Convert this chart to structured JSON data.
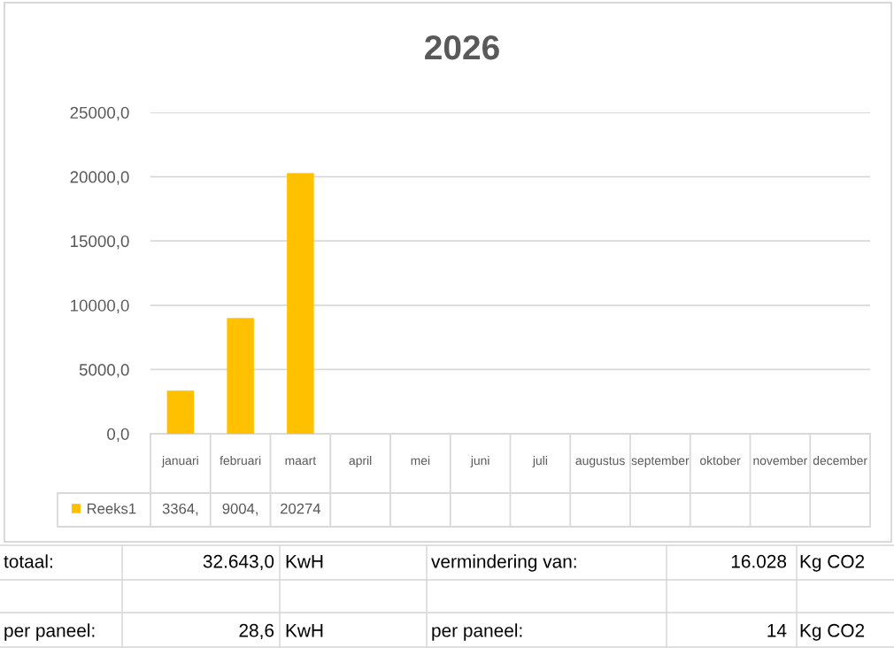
{
  "chart_data": {
    "type": "bar",
    "title": "2026",
    "categories": [
      "januari",
      "februari",
      "maart",
      "april",
      "mei",
      "juni",
      "juli",
      "augustus",
      "september",
      "oktober",
      "november",
      "december"
    ],
    "series": [
      {
        "name": "Reeks1",
        "color": "#ffc000",
        "values": [
          3364,
          9004,
          20274,
          null,
          null,
          null,
          null,
          null,
          null,
          null,
          null,
          null
        ],
        "value_labels": [
          "3364,",
          "9004,",
          "20274",
          null,
          null,
          null,
          null,
          null,
          null,
          null,
          null,
          null
        ]
      }
    ],
    "ylim": [
      0,
      25000
    ],
    "yticks": [
      {
        "value": 0,
        "label": "0,0"
      },
      {
        "value": 5000,
        "label": "5000,0"
      },
      {
        "value": 10000,
        "label": "10000,0"
      },
      {
        "value": 15000,
        "label": "15000,0"
      },
      {
        "value": 20000,
        "label": "20000,0"
      },
      {
        "value": 25000,
        "label": "25000,0"
      }
    ],
    "grid": "y",
    "legend": "bottom",
    "annotations": [
      "totaal:",
      "32.643,0",
      "KwH",
      "vermindering van:",
      "16.028",
      "Kg CO2",
      "per paneel:",
      "28,6",
      "KwH",
      "per paneel:",
      "14",
      "Kg CO2"
    ]
  }
}
